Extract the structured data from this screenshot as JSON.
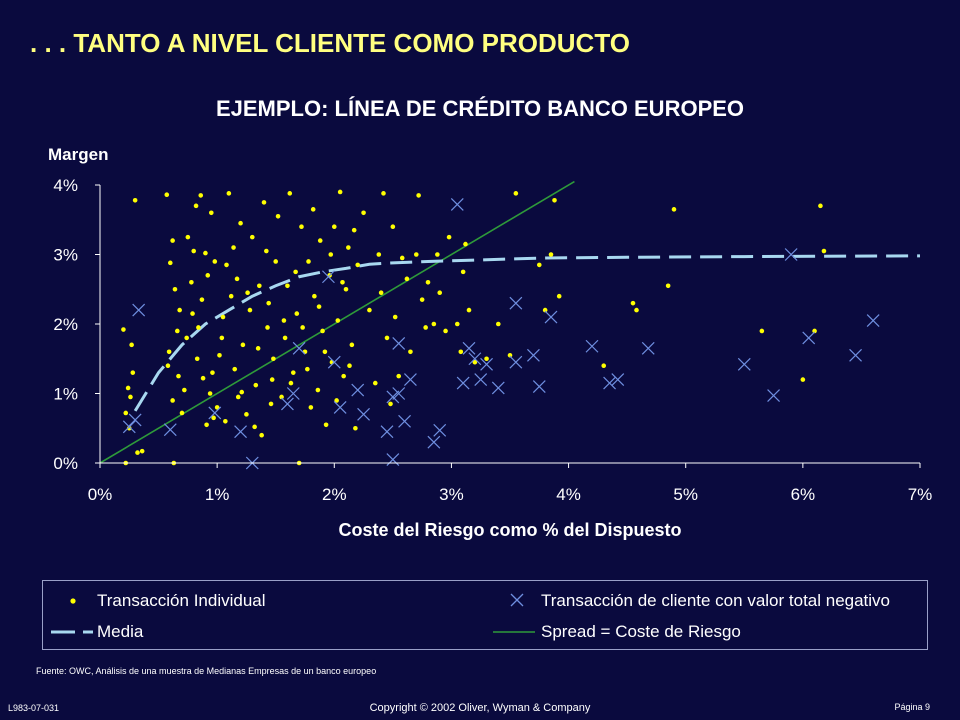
{
  "header": {
    "slide_title": ". . . TANTO A NIVEL CLIENTE COMO PRODUCTO"
  },
  "chart_data": {
    "type": "scatter",
    "title": "EJEMPLO: LÍNEA DE CRÉDITO BANCO EUROPEO",
    "xlabel": "Coste del Riesgo como % del  Dispuesto",
    "ylabel": "Margen",
    "xlim": [
      0,
      7
    ],
    "ylim": [
      0,
      4
    ],
    "x_ticks": [
      "0%",
      "1%",
      "2%",
      "3%",
      "4%",
      "5%",
      "6%",
      "7%"
    ],
    "y_ticks": [
      "0%",
      "1%",
      "2%",
      "3%",
      "4%"
    ],
    "grid": false,
    "legend_position": "bottom",
    "colors": {
      "individual": "#ffff00",
      "negative": "#6f8fe0",
      "media": "#a8d8f0",
      "spread": "#2e9a3a",
      "axis": "#ffffff"
    },
    "series": [
      {
        "name": "Transacción Individual",
        "marker": "dot",
        "points": [
          [
            0.2,
            1.92
          ],
          [
            0.24,
            1.08
          ],
          [
            0.26,
            0.95
          ],
          [
            0.27,
            1.7
          ],
          [
            0.3,
            3.78
          ],
          [
            0.22,
            0.72
          ],
          [
            0.28,
            1.3
          ],
          [
            0.25,
            0.5
          ],
          [
            0.32,
            0.15
          ],
          [
            0.36,
            0.17
          ],
          [
            0.22,
            0.0
          ],
          [
            0.57,
            3.86
          ],
          [
            0.6,
            2.88
          ],
          [
            0.62,
            3.2
          ],
          [
            0.58,
            1.4
          ],
          [
            0.63,
            0.0
          ],
          [
            0.66,
            1.9
          ],
          [
            0.68,
            2.2
          ],
          [
            0.7,
            0.72
          ],
          [
            0.72,
            1.05
          ],
          [
            0.75,
            3.25
          ],
          [
            0.78,
            2.6
          ],
          [
            0.8,
            3.05
          ],
          [
            0.74,
            1.8
          ],
          [
            0.67,
            1.25
          ],
          [
            0.62,
            0.9
          ],
          [
            0.59,
            1.6
          ],
          [
            0.64,
            2.5
          ],
          [
            0.82,
            3.7
          ],
          [
            0.86,
            3.85
          ],
          [
            0.9,
            3.02
          ],
          [
            0.92,
            2.7
          ],
          [
            0.95,
            3.6
          ],
          [
            0.98,
            2.9
          ],
          [
            0.84,
            1.95
          ],
          [
            0.88,
            1.22
          ],
          [
            0.94,
            1.0
          ],
          [
            1.0,
            0.8
          ],
          [
            0.97,
            0.65
          ],
          [
            1.02,
            1.55
          ],
          [
            1.05,
            2.1
          ],
          [
            1.08,
            2.85
          ],
          [
            1.1,
            3.88
          ],
          [
            1.12,
            2.4
          ],
          [
            1.15,
            1.35
          ],
          [
            1.18,
            0.95
          ],
          [
            1.2,
            3.45
          ],
          [
            1.22,
            1.7
          ],
          [
            1.25,
            0.7
          ],
          [
            1.28,
            2.2
          ],
          [
            1.3,
            3.25
          ],
          [
            1.33,
            1.12
          ],
          [
            1.36,
            2.55
          ],
          [
            1.38,
            0.4
          ],
          [
            1.4,
            3.75
          ],
          [
            1.43,
            1.95
          ],
          [
            1.46,
            0.85
          ],
          [
            1.48,
            1.5
          ],
          [
            1.5,
            2.9
          ],
          [
            0.79,
            2.15
          ],
          [
            0.83,
            1.5
          ],
          [
            0.87,
            2.35
          ],
          [
            0.91,
            0.55
          ],
          [
            0.96,
            1.3
          ],
          [
            1.04,
            1.8
          ],
          [
            1.07,
            0.6
          ],
          [
            1.14,
            3.1
          ],
          [
            1.17,
            2.65
          ],
          [
            1.21,
            1.02
          ],
          [
            1.26,
            2.45
          ],
          [
            1.32,
            0.52
          ],
          [
            1.35,
            1.65
          ],
          [
            1.42,
            3.05
          ],
          [
            1.44,
            2.3
          ],
          [
            1.47,
            1.2
          ],
          [
            1.52,
            3.55
          ],
          [
            1.55,
            0.95
          ],
          [
            1.58,
            1.8
          ],
          [
            1.6,
            2.55
          ],
          [
            1.62,
            3.88
          ],
          [
            1.65,
            1.3
          ],
          [
            1.68,
            2.15
          ],
          [
            1.7,
            0.0
          ],
          [
            1.72,
            3.4
          ],
          [
            1.75,
            1.6
          ],
          [
            1.78,
            2.9
          ],
          [
            1.8,
            0.8
          ],
          [
            1.83,
            2.4
          ],
          [
            1.86,
            1.05
          ],
          [
            1.88,
            3.2
          ],
          [
            1.9,
            1.9
          ],
          [
            1.93,
            0.55
          ],
          [
            1.96,
            2.7
          ],
          [
            1.98,
            1.45
          ],
          [
            2.0,
            3.4
          ],
          [
            2.03,
            2.05
          ],
          [
            2.05,
            3.9
          ],
          [
            2.08,
            1.25
          ],
          [
            2.1,
            2.5
          ],
          [
            2.12,
            3.1
          ],
          [
            2.15,
            1.7
          ],
          [
            2.18,
            0.5
          ],
          [
            2.2,
            2.85
          ],
          [
            1.57,
            2.05
          ],
          [
            1.63,
            1.15
          ],
          [
            1.67,
            2.75
          ],
          [
            1.73,
            1.95
          ],
          [
            1.77,
            1.35
          ],
          [
            1.82,
            3.65
          ],
          [
            1.87,
            2.25
          ],
          [
            1.92,
            1.6
          ],
          [
            1.97,
            3.0
          ],
          [
            2.02,
            0.9
          ],
          [
            2.07,
            2.6
          ],
          [
            2.13,
            1.4
          ],
          [
            2.17,
            3.35
          ],
          [
            2.25,
            3.6
          ],
          [
            2.3,
            2.2
          ],
          [
            2.35,
            1.15
          ],
          [
            2.38,
            3.0
          ],
          [
            2.4,
            2.45
          ],
          [
            2.42,
            3.88
          ],
          [
            2.45,
            1.8
          ],
          [
            2.48,
            0.85
          ],
          [
            2.5,
            3.4
          ],
          [
            2.52,
            2.1
          ],
          [
            2.55,
            1.25
          ],
          [
            2.58,
            2.95
          ],
          [
            2.62,
            2.65
          ],
          [
            2.65,
            1.6
          ],
          [
            2.7,
            3.0
          ],
          [
            2.72,
            3.85
          ],
          [
            2.75,
            2.35
          ],
          [
            2.78,
            1.95
          ],
          [
            2.8,
            2.6
          ],
          [
            2.85,
            2.0
          ],
          [
            2.88,
            3.0
          ],
          [
            2.9,
            2.45
          ],
          [
            2.95,
            1.9
          ],
          [
            2.98,
            3.25
          ],
          [
            3.05,
            2.0
          ],
          [
            3.08,
            1.6
          ],
          [
            3.1,
            2.75
          ],
          [
            3.12,
            3.15
          ],
          [
            3.15,
            2.2
          ],
          [
            3.2,
            1.45
          ],
          [
            3.3,
            1.5
          ],
          [
            3.4,
            2.0
          ],
          [
            3.5,
            1.55
          ],
          [
            3.55,
            3.88
          ],
          [
            3.75,
            2.85
          ],
          [
            3.8,
            2.2
          ],
          [
            3.85,
            3.0
          ],
          [
            3.88,
            3.78
          ],
          [
            3.92,
            2.4
          ],
          [
            4.3,
            1.4
          ],
          [
            4.55,
            2.3
          ],
          [
            4.58,
            2.2
          ],
          [
            4.85,
            2.55
          ],
          [
            4.9,
            3.65
          ],
          [
            5.65,
            1.9
          ],
          [
            6.0,
            1.2
          ],
          [
            6.1,
            1.9
          ],
          [
            6.15,
            3.7
          ],
          [
            6.18,
            3.05
          ]
        ]
      },
      {
        "name": "Transacción de cliente con valor total negativo",
        "marker": "x",
        "points": [
          [
            0.25,
            0.52
          ],
          [
            0.3,
            0.62
          ],
          [
            0.33,
            2.2
          ],
          [
            0.6,
            0.48
          ],
          [
            0.98,
            0.72
          ],
          [
            1.2,
            0.45
          ],
          [
            1.3,
            0.0
          ],
          [
            1.6,
            0.85
          ],
          [
            1.65,
            1.0
          ],
          [
            1.7,
            1.65
          ],
          [
            1.95,
            2.68
          ],
          [
            2.0,
            1.45
          ],
          [
            2.05,
            0.8
          ],
          [
            2.2,
            1.05
          ],
          [
            2.25,
            0.7
          ],
          [
            2.45,
            0.45
          ],
          [
            2.5,
            0.95
          ],
          [
            2.55,
            1.0
          ],
          [
            2.5,
            0.05
          ],
          [
            2.55,
            1.72
          ],
          [
            2.6,
            0.6
          ],
          [
            2.65,
            1.2
          ],
          [
            2.85,
            0.3
          ],
          [
            2.9,
            0.47
          ],
          [
            3.05,
            3.72
          ],
          [
            3.1,
            1.15
          ],
          [
            3.15,
            1.65
          ],
          [
            3.2,
            1.5
          ],
          [
            3.25,
            1.2
          ],
          [
            3.3,
            1.42
          ],
          [
            3.4,
            1.08
          ],
          [
            3.55,
            2.3
          ],
          [
            3.55,
            1.45
          ],
          [
            3.7,
            1.55
          ],
          [
            3.75,
            1.1
          ],
          [
            3.85,
            2.1
          ],
          [
            4.2,
            1.68
          ],
          [
            4.35,
            1.15
          ],
          [
            4.42,
            1.2
          ],
          [
            4.68,
            1.65
          ],
          [
            5.5,
            1.42
          ],
          [
            5.75,
            0.97
          ],
          [
            5.9,
            3.0
          ],
          [
            6.05,
            1.8
          ],
          [
            6.45,
            1.55
          ],
          [
            6.6,
            2.05
          ]
        ]
      },
      {
        "name": "Media",
        "marker": "dashed-line",
        "points": [
          [
            0.3,
            0.75
          ],
          [
            0.5,
            1.3
          ],
          [
            0.7,
            1.7
          ],
          [
            0.9,
            2.0
          ],
          [
            1.1,
            2.2
          ],
          [
            1.3,
            2.4
          ],
          [
            1.5,
            2.55
          ],
          [
            1.7,
            2.68
          ],
          [
            1.9,
            2.75
          ],
          [
            2.1,
            2.8
          ],
          [
            2.3,
            2.86
          ],
          [
            2.5,
            2.88
          ],
          [
            2.8,
            2.9
          ],
          [
            3.2,
            2.92
          ],
          [
            3.8,
            2.95
          ],
          [
            4.5,
            2.96
          ],
          [
            5.5,
            2.97
          ],
          [
            7.0,
            2.98
          ]
        ]
      },
      {
        "name": "Spread = Coste de Riesgo",
        "marker": "line",
        "points": [
          [
            0,
            0
          ],
          [
            4.05,
            4.05
          ]
        ]
      }
    ]
  },
  "source": "Fuente: OWC, Análisis de una muestra de Medianas Empresas de un banco europeo",
  "footer": {
    "code": "L983-07-031",
    "copyright": "Copyright © 2002 Oliver, Wyman & Company",
    "page": "Página 9"
  }
}
